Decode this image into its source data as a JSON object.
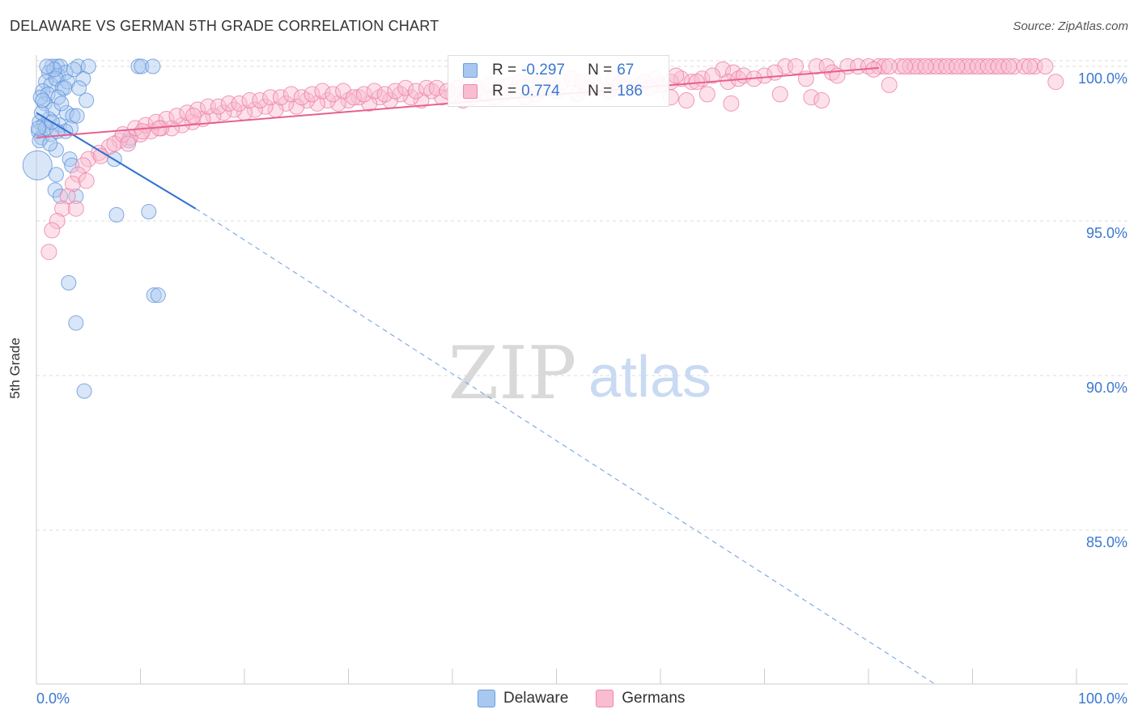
{
  "title": "DELAWARE VS GERMAN 5TH GRADE CORRELATION CHART",
  "source": "Source: ZipAtlas.com",
  "watermark": {
    "zip": "ZIP",
    "atlas": "atlas"
  },
  "legend": {
    "r_label": "R =",
    "n_label": "N =",
    "rows": [
      {
        "name": "Delaware",
        "r": "-0.297",
        "n": "67",
        "color": "#6a9de0",
        "fill": "#a9c8f0"
      },
      {
        "name": "Germans",
        "r": "0.774",
        "n": "186",
        "color": "#f08aaa",
        "fill": "#f9bcd0"
      }
    ]
  },
  "chart_data": {
    "type": "scatter",
    "xlabel": "",
    "ylabel": "5th Grade",
    "xlim": [
      0,
      100
    ],
    "ylim": [
      80,
      100.5
    ],
    "x_tick_labels": [
      "0.0%",
      "100.0%"
    ],
    "y_ticks": [
      100,
      95,
      90,
      85
    ],
    "y_tick_labels": [
      "100.0%",
      "95.0%",
      "90.0%",
      "85.0%"
    ],
    "grid": true,
    "series": [
      {
        "name": "Delaware",
        "color": "#5b8fd8",
        "fill": "#a9c8f0",
        "trend": {
          "x0": 0,
          "y0": 98.5,
          "x1": 15.3,
          "y1": 95.4,
          "dash_to_x": 86.5,
          "dash_to_y": 80.0
        },
        "points": [
          [
            1.5,
            100
          ],
          [
            2,
            100
          ],
          [
            2.3,
            100
          ],
          [
            4,
            100
          ],
          [
            5,
            100
          ],
          [
            9.8,
            100
          ],
          [
            10.1,
            100
          ],
          [
            11.2,
            100
          ],
          [
            1.2,
            99.8
          ],
          [
            2.1,
            99.7
          ],
          [
            2.8,
            99.8
          ],
          [
            0.9,
            99.5
          ],
          [
            1.4,
            99.4
          ],
          [
            1.9,
            99.6
          ],
          [
            2.5,
            99.3
          ],
          [
            3,
            99.5
          ],
          [
            0.6,
            99.2
          ],
          [
            1.1,
            99.1
          ],
          [
            2.7,
            99.3
          ],
          [
            0.8,
            98.8
          ],
          [
            1.6,
            98.6
          ],
          [
            2.9,
            98.5
          ],
          [
            3.5,
            98.4
          ],
          [
            0.3,
            98.2
          ],
          [
            0.7,
            98.1
          ],
          [
            1.2,
            98.3
          ],
          [
            2.2,
            98.1
          ],
          [
            3.3,
            98.0
          ],
          [
            0.2,
            97.9
          ],
          [
            0.5,
            97.7
          ],
          [
            1.4,
            97.8
          ],
          [
            2.8,
            97.9
          ],
          [
            4.8,
            98.9
          ],
          [
            4.5,
            99.6
          ],
          [
            0.3,
            97.6
          ],
          [
            1.9,
            97.3
          ],
          [
            3.2,
            97.0
          ],
          [
            3.4,
            96.8
          ],
          [
            7.5,
            97.0
          ],
          [
            8.9,
            97.6
          ],
          [
            0.1,
            96.8
          ],
          [
            1.9,
            96.5
          ],
          [
            1.8,
            96.0
          ],
          [
            2.3,
            95.8
          ],
          [
            3.8,
            95.8
          ],
          [
            7.7,
            95.2
          ],
          [
            10.8,
            95.3
          ],
          [
            3.1,
            93.0
          ],
          [
            11.3,
            92.6
          ],
          [
            11.7,
            92.6
          ],
          [
            3.8,
            91.7
          ],
          [
            4.6,
            89.5
          ],
          [
            0.5,
            98.5
          ],
          [
            1.3,
            97.5
          ],
          [
            2.1,
            99.0
          ],
          [
            0.9,
            98.0
          ],
          [
            3.6,
            99.9
          ],
          [
            1.7,
            99.9
          ],
          [
            0.4,
            99.0
          ],
          [
            2.4,
            98.8
          ],
          [
            0.2,
            98.0
          ],
          [
            4.1,
            99.3
          ],
          [
            1.0,
            100
          ],
          [
            0.6,
            98.9
          ],
          [
            2.0,
            97.9
          ],
          [
            3.9,
            98.4
          ],
          [
            1.5,
            98.2
          ]
        ],
        "sizes": [
          9,
          9,
          9,
          9,
          9,
          9,
          9,
          9,
          9,
          9,
          9,
          9,
          9,
          9,
          9,
          9,
          9,
          9,
          9,
          9,
          9,
          9,
          9,
          9,
          9,
          9,
          9,
          9,
          9,
          9,
          9,
          9,
          9,
          9,
          9,
          9,
          9,
          9,
          9,
          9,
          18,
          9,
          9,
          9,
          9,
          9,
          9,
          9,
          9,
          9,
          9,
          9,
          9,
          9,
          9,
          9,
          9,
          9,
          9,
          9,
          9,
          9,
          9,
          9,
          9,
          9,
          9
        ]
      },
      {
        "name": "Germans",
        "color": "#ec7aa0",
        "fill": "#f9bcd0",
        "trend": {
          "x0": 0,
          "y0": 97.7,
          "x1": 81,
          "y1": 99.95
        },
        "points": [
          [
            72,
            100
          ],
          [
            73,
            100
          ],
          [
            75,
            100
          ],
          [
            76,
            100
          ],
          [
            78,
            100
          ],
          [
            79,
            100
          ],
          [
            80,
            100
          ],
          [
            81,
            100
          ],
          [
            83,
            100
          ],
          [
            84,
            100
          ],
          [
            85,
            100
          ],
          [
            86,
            100
          ],
          [
            87,
            100
          ],
          [
            88,
            100
          ],
          [
            89,
            100
          ],
          [
            90,
            100
          ],
          [
            91,
            100
          ],
          [
            92,
            100
          ],
          [
            93,
            100
          ],
          [
            94,
            100
          ],
          [
            95,
            100
          ],
          [
            96,
            100
          ],
          [
            97,
            100
          ],
          [
            81.5,
            100
          ],
          [
            84.5,
            100
          ],
          [
            86.5,
            100
          ],
          [
            87.5,
            100
          ],
          [
            89.5,
            100
          ],
          [
            90.5,
            100
          ],
          [
            91.5,
            100
          ],
          [
            92.5,
            100
          ],
          [
            93.5,
            100
          ],
          [
            95.5,
            100
          ],
          [
            66,
            99.9
          ],
          [
            67,
            99.8
          ],
          [
            70,
            99.7
          ],
          [
            71,
            99.8
          ],
          [
            74,
            99.6
          ],
          [
            76.5,
            99.8
          ],
          [
            77,
            99.7
          ],
          [
            80.5,
            99.9
          ],
          [
            82,
            100
          ],
          [
            83.5,
            100
          ],
          [
            85.5,
            100
          ],
          [
            88.5,
            100
          ],
          [
            62,
            99.6
          ],
          [
            63,
            99.5
          ],
          [
            64,
            99.6
          ],
          [
            66.5,
            99.5
          ],
          [
            60,
            99.4
          ],
          [
            61,
            99.5
          ],
          [
            58,
            99.4
          ],
          [
            57,
            99.3
          ],
          [
            55,
            99.2
          ],
          [
            54,
            99.3
          ],
          [
            52,
            99.1
          ],
          [
            50,
            99.2
          ],
          [
            49,
            99.3
          ],
          [
            48,
            99.1
          ],
          [
            47,
            99.0
          ],
          [
            46,
            99.2
          ],
          [
            45,
            99.1
          ],
          [
            44,
            99.0
          ],
          [
            43,
            99.1
          ],
          [
            42,
            99.0
          ],
          [
            41,
            98.9
          ],
          [
            40,
            99.1
          ],
          [
            39,
            99.0
          ],
          [
            38,
            99.2
          ],
          [
            37,
            98.9
          ],
          [
            36,
            99.0
          ],
          [
            35,
            99.1
          ],
          [
            34,
            98.9
          ],
          [
            33,
            99.0
          ],
          [
            32,
            98.8
          ],
          [
            31,
            99.0
          ],
          [
            30,
            98.9
          ],
          [
            29,
            98.8
          ],
          [
            28,
            98.9
          ],
          [
            27,
            98.8
          ],
          [
            26,
            98.9
          ],
          [
            25,
            98.7
          ],
          [
            24,
            98.8
          ],
          [
            23,
            98.6
          ],
          [
            22,
            98.7
          ],
          [
            21,
            98.6
          ],
          [
            20,
            98.5
          ],
          [
            19,
            98.6
          ],
          [
            18,
            98.5
          ],
          [
            17,
            98.4
          ],
          [
            16,
            98.3
          ],
          [
            15,
            98.2
          ],
          [
            14,
            98.1
          ],
          [
            13,
            98.0
          ],
          [
            12,
            98.0
          ],
          [
            11,
            97.9
          ],
          [
            10,
            97.8
          ],
          [
            9,
            97.7
          ],
          [
            8,
            97.6
          ],
          [
            7,
            97.4
          ],
          [
            6,
            97.2
          ],
          [
            5,
            97.0
          ],
          [
            4.5,
            96.8
          ],
          [
            4,
            96.5
          ],
          [
            3.5,
            96.2
          ],
          [
            3,
            95.8
          ],
          [
            2.5,
            95.4
          ],
          [
            2,
            95.0
          ],
          [
            1.5,
            94.7
          ],
          [
            1.2,
            94.0
          ],
          [
            3.8,
            95.4
          ],
          [
            4.8,
            96.3
          ],
          [
            6.2,
            97.1
          ],
          [
            7.5,
            97.5
          ],
          [
            8.3,
            97.8
          ],
          [
            9.5,
            98.0
          ],
          [
            10.5,
            98.1
          ],
          [
            11.5,
            98.2
          ],
          [
            12.5,
            98.3
          ],
          [
            13.5,
            98.4
          ],
          [
            14.5,
            98.5
          ],
          [
            15.5,
            98.6
          ],
          [
            16.5,
            98.7
          ],
          [
            17.5,
            98.7
          ],
          [
            18.5,
            98.8
          ],
          [
            19.5,
            98.8
          ],
          [
            20.5,
            98.9
          ],
          [
            21.5,
            98.9
          ],
          [
            22.5,
            99.0
          ],
          [
            23.5,
            99.0
          ],
          [
            24.5,
            99.1
          ],
          [
            25.5,
            99.0
          ],
          [
            26.5,
            99.1
          ],
          [
            27.5,
            99.2
          ],
          [
            28.5,
            99.1
          ],
          [
            29.5,
            99.2
          ],
          [
            30.5,
            99.0
          ],
          [
            31.5,
            99.1
          ],
          [
            32.5,
            99.2
          ],
          [
            33.5,
            99.1
          ],
          [
            34.5,
            99.2
          ],
          [
            35.5,
            99.3
          ],
          [
            36.5,
            99.2
          ],
          [
            37.5,
            99.3
          ],
          [
            38.5,
            99.3
          ],
          [
            39.5,
            99.2
          ],
          [
            40.5,
            99.3
          ],
          [
            41.5,
            99.4
          ],
          [
            42.5,
            99.3
          ],
          [
            43.5,
            99.4
          ],
          [
            44.5,
            99.3
          ],
          [
            45.5,
            99.4
          ],
          [
            46.5,
            99.5
          ],
          [
            47.5,
            99.4
          ],
          [
            48.5,
            99.5
          ],
          [
            49.5,
            99.4
          ],
          [
            50.5,
            99.5
          ],
          [
            51.5,
            99.6
          ],
          [
            52.5,
            99.5
          ],
          [
            53.5,
            99.6
          ],
          [
            55.5,
            99.6
          ],
          [
            56.5,
            99.5
          ],
          [
            58.5,
            99.5
          ],
          [
            59.5,
            99.6
          ],
          [
            61.5,
            99.7
          ],
          [
            63.5,
            99.5
          ],
          [
            65,
            99.7
          ],
          [
            67.5,
            99.6
          ],
          [
            68,
            99.7
          ],
          [
            69,
            99.6
          ],
          [
            61,
            99.0
          ],
          [
            62.5,
            98.9
          ],
          [
            64.5,
            99.1
          ],
          [
            66.8,
            98.8
          ],
          [
            71.5,
            99.1
          ],
          [
            74.5,
            99.0
          ],
          [
            75.5,
            98.9
          ],
          [
            82,
            99.4
          ],
          [
            98,
            99.5
          ],
          [
            53,
            99.3
          ],
          [
            56,
            99.4
          ],
          [
            59,
            99.3
          ],
          [
            8.8,
            97.5
          ],
          [
            10.2,
            97.9
          ],
          [
            11.8,
            98.0
          ],
          [
            15.1,
            98.4
          ]
        ],
        "sizes": []
      }
    ]
  }
}
